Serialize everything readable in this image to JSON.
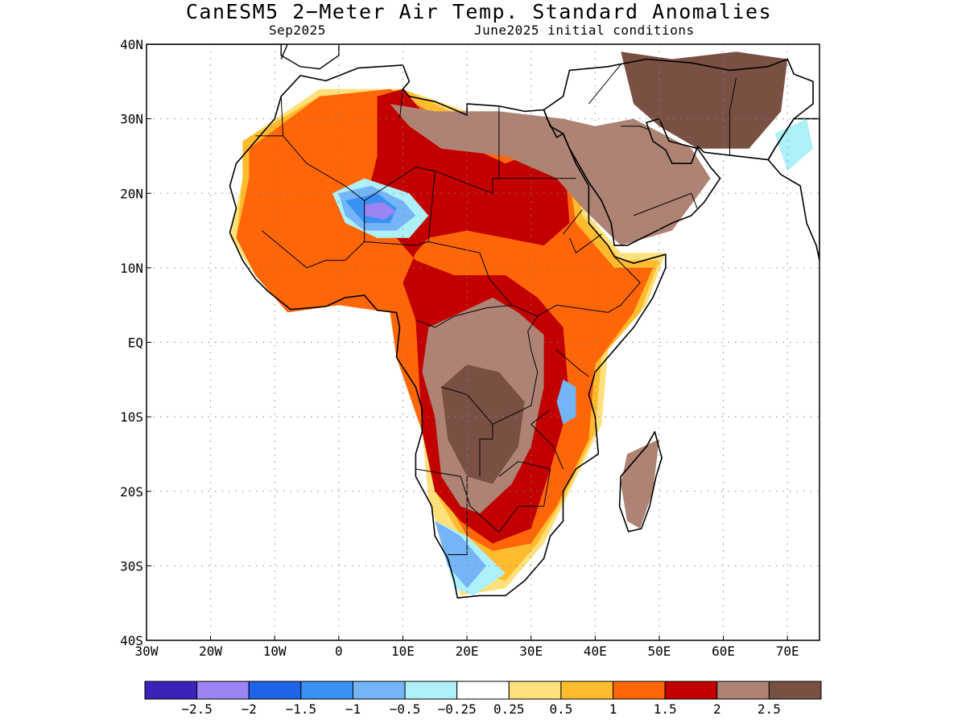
{
  "title": "CanESM5 2−Meter Air Temp. Standard Anomalies",
  "subtitle_left": "Sep2025",
  "subtitle_right": "June2025 initial conditions",
  "map": {
    "lon_range": [
      -30,
      75
    ],
    "lat_range": [
      -40,
      40
    ],
    "lon_ticks": [
      {
        "value": -30,
        "label": "30W"
      },
      {
        "value": -20,
        "label": "20W"
      },
      {
        "value": -10,
        "label": "10W"
      },
      {
        "value": 0,
        "label": "0"
      },
      {
        "value": 10,
        "label": "10E"
      },
      {
        "value": 20,
        "label": "20E"
      },
      {
        "value": 30,
        "label": "30E"
      },
      {
        "value": 40,
        "label": "40E"
      },
      {
        "value": 50,
        "label": "50E"
      },
      {
        "value": 60,
        "label": "60E"
      },
      {
        "value": 70,
        "label": "70E"
      }
    ],
    "lat_ticks": [
      {
        "value": 40,
        "label": "40N"
      },
      {
        "value": 30,
        "label": "30N"
      },
      {
        "value": 20,
        "label": "20N"
      },
      {
        "value": 10,
        "label": "10N"
      },
      {
        "value": 0,
        "label": "EQ"
      },
      {
        "value": -10,
        "label": "10S"
      },
      {
        "value": -20,
        "label": "20S"
      },
      {
        "value": -30,
        "label": "30S"
      },
      {
        "value": -40,
        "label": "40S"
      }
    ],
    "grid": "dotted"
  },
  "colorbar": {
    "colors": [
      "#3a23b8",
      "#9b85f5",
      "#1f64e6",
      "#3a91f2",
      "#74b5f7",
      "#aef0f8",
      "#ffffff",
      "#ffe07a",
      "#ffbb2e",
      "#ff6608",
      "#c20000",
      "#ae8374",
      "#7a5043"
    ],
    "labels": [
      "−2.5",
      "−2",
      "−1.5",
      "−1",
      "−0.5",
      "−0.25",
      "0.25",
      "0.5",
      "1",
      "1.5",
      "2",
      "2.5"
    ]
  },
  "anomaly_regions": [
    {
      "level": 7,
      "color": "#ffe07a",
      "poly": [
        [
          -15,
          27
        ],
        [
          -3,
          34
        ],
        [
          10,
          34
        ],
        [
          20,
          31
        ],
        [
          35,
          30
        ],
        [
          38,
          18
        ],
        [
          44,
          12
        ],
        [
          51,
          12
        ],
        [
          48,
          5
        ],
        [
          42,
          -1
        ],
        [
          41,
          -11
        ],
        [
          36,
          -20
        ],
        [
          32,
          -27
        ],
        [
          26,
          -33
        ],
        [
          19,
          -34
        ],
        [
          17,
          -29
        ],
        [
          14,
          -21
        ],
        [
          13,
          -12
        ],
        [
          9,
          -2
        ],
        [
          8,
          4
        ],
        [
          0,
          5
        ],
        [
          -8,
          4
        ],
        [
          -13,
          9
        ],
        [
          -17,
          14
        ],
        [
          -15,
          22
        ]
      ]
    },
    {
      "level": 8,
      "color": "#ffbb2e",
      "poly": [
        [
          -15,
          27
        ],
        [
          -3,
          33
        ],
        [
          10,
          34
        ],
        [
          20,
          30
        ],
        [
          35,
          29
        ],
        [
          38,
          17
        ],
        [
          44,
          11
        ],
        [
          50,
          11
        ],
        [
          47,
          4
        ],
        [
          41,
          -2
        ],
        [
          40,
          -12
        ],
        [
          35,
          -21
        ],
        [
          31,
          -27
        ],
        [
          26,
          -32
        ],
        [
          21,
          -31
        ],
        [
          19,
          -26
        ],
        [
          15,
          -20
        ],
        [
          13,
          -12
        ],
        [
          9,
          -2
        ],
        [
          8,
          4
        ],
        [
          0,
          5
        ],
        [
          -8,
          4
        ],
        [
          -13,
          9
        ],
        [
          -16,
          14
        ],
        [
          -15,
          22
        ]
      ]
    },
    {
      "level": 9,
      "color": "#ff6608",
      "poly": [
        [
          -14,
          26
        ],
        [
          -3,
          33
        ],
        [
          8,
          34
        ],
        [
          18,
          29
        ],
        [
          35,
          28
        ],
        [
          37,
          16
        ],
        [
          43,
          10
        ],
        [
          49,
          10
        ],
        [
          46,
          4
        ],
        [
          40,
          -3
        ],
        [
          39,
          -13
        ],
        [
          34,
          -22
        ],
        [
          30,
          -27
        ],
        [
          24,
          -28
        ],
        [
          20,
          -26
        ],
        [
          16,
          -20
        ],
        [
          13,
          -12
        ],
        [
          9,
          -2
        ],
        [
          8,
          4
        ],
        [
          0,
          5
        ],
        [
          -8,
          4
        ],
        [
          -13,
          9
        ],
        [
          -16,
          14
        ],
        [
          -14,
          22
        ]
      ]
    },
    {
      "level": 10,
      "color": "#c20000",
      "poly": [
        [
          6,
          33
        ],
        [
          10,
          34
        ],
        [
          16,
          28
        ],
        [
          26,
          24
        ],
        [
          35,
          27
        ],
        [
          36,
          16
        ],
        [
          32,
          13
        ],
        [
          20,
          15
        ],
        [
          14,
          14
        ],
        [
          12,
          12
        ],
        [
          10,
          8
        ],
        [
          12,
          3
        ],
        [
          13,
          -12
        ],
        [
          15,
          -20
        ],
        [
          19,
          -24
        ],
        [
          24,
          -27
        ],
        [
          30,
          -25
        ],
        [
          33,
          -17
        ],
        [
          36,
          -8
        ],
        [
          35,
          2
        ],
        [
          31,
          6
        ],
        [
          26,
          9
        ],
        [
          18,
          9
        ],
        [
          12,
          11
        ],
        [
          8,
          15
        ],
        [
          4,
          18
        ],
        [
          6,
          25
        ]
      ]
    },
    {
      "level": 11,
      "color": "#ae8374",
      "poly": [
        [
          8,
          32
        ],
        [
          15,
          31
        ],
        [
          25,
          31
        ],
        [
          35,
          30
        ],
        [
          40,
          29
        ],
        [
          46,
          30
        ],
        [
          55,
          26
        ],
        [
          58,
          22
        ],
        [
          52,
          15
        ],
        [
          44,
          13
        ],
        [
          38,
          18
        ],
        [
          34,
          22
        ],
        [
          26,
          25
        ],
        [
          16,
          26
        ],
        [
          11,
          29
        ]
      ]
    },
    {
      "level": 11,
      "color": "#ae8374",
      "poly": [
        [
          14,
          2
        ],
        [
          24,
          6
        ],
        [
          28,
          4
        ],
        [
          32,
          1
        ],
        [
          32,
          -6
        ],
        [
          30,
          -14
        ],
        [
          27,
          -19
        ],
        [
          22,
          -23
        ],
        [
          19,
          -22
        ],
        [
          16,
          -18
        ],
        [
          15,
          -10
        ],
        [
          13,
          -4
        ]
      ]
    },
    {
      "level": 12,
      "color": "#7a5043",
      "poly": [
        [
          16,
          -6
        ],
        [
          20,
          -3
        ],
        [
          25,
          -4
        ],
        [
          29,
          -8
        ],
        [
          28,
          -14
        ],
        [
          24,
          -19
        ],
        [
          20,
          -18
        ],
        [
          17,
          -13
        ]
      ]
    },
    {
      "level": 12,
      "color": "#7a5043",
      "poly": [
        [
          44,
          39
        ],
        [
          52,
          38
        ],
        [
          62,
          39
        ],
        [
          70,
          38
        ],
        [
          69,
          31
        ],
        [
          64,
          26
        ],
        [
          56,
          26
        ],
        [
          50,
          29
        ],
        [
          46,
          32
        ]
      ]
    },
    {
      "level": 11,
      "color": "#ae8374",
      "poly": [
        [
          45,
          -15
        ],
        [
          50,
          -13
        ],
        [
          49,
          -20
        ],
        [
          47,
          -25
        ],
        [
          45,
          -24
        ],
        [
          44,
          -19
        ]
      ]
    },
    {
      "level": 5,
      "color": "#aef0f8",
      "poly": [
        [
          -1,
          20
        ],
        [
          4,
          22
        ],
        [
          11,
          20
        ],
        [
          14,
          17
        ],
        [
          11,
          14
        ],
        [
          6,
          14
        ],
        [
          1,
          16
        ]
      ]
    },
    {
      "level": 4,
      "color": "#74b5f7",
      "poly": [
        [
          0,
          20
        ],
        [
          5,
          21
        ],
        [
          10,
          19
        ],
        [
          12,
          17
        ],
        [
          9,
          15
        ],
        [
          4,
          15
        ],
        [
          1,
          17
        ]
      ]
    },
    {
      "level": 3,
      "color": "#3a91f2",
      "poly": [
        [
          1,
          19
        ],
        [
          6,
          20
        ],
        [
          9,
          18
        ],
        [
          8,
          16
        ],
        [
          4,
          16
        ]
      ]
    },
    {
      "level": 1,
      "color": "#9b85f5",
      "poly": [
        [
          4,
          18.5
        ],
        [
          7,
          18.8
        ],
        [
          9,
          17.5
        ],
        [
          7,
          16.5
        ],
        [
          4,
          17
        ]
      ]
    },
    {
      "level": 5,
      "color": "#aef0f8",
      "poly": [
        [
          15,
          -24
        ],
        [
          20,
          -26
        ],
        [
          26,
          -31
        ],
        [
          21,
          -34
        ],
        [
          18,
          -33
        ]
      ]
    },
    {
      "level": 4,
      "color": "#74b5f7",
      "poly": [
        [
          15,
          -24
        ],
        [
          19,
          -26
        ],
        [
          23,
          -30
        ],
        [
          20,
          -33
        ],
        [
          17,
          -30
        ]
      ]
    },
    {
      "level": 4,
      "color": "#74b5f7",
      "poly": [
        [
          35,
          -5
        ],
        [
          37,
          -6
        ],
        [
          37,
          -10
        ],
        [
          35,
          -11
        ],
        [
          34,
          -8
        ]
      ]
    },
    {
      "level": 5,
      "color": "#aef0f8",
      "poly": [
        [
          68,
          28
        ],
        [
          73,
          30
        ],
        [
          74,
          26
        ],
        [
          70,
          23
        ]
      ]
    }
  ]
}
